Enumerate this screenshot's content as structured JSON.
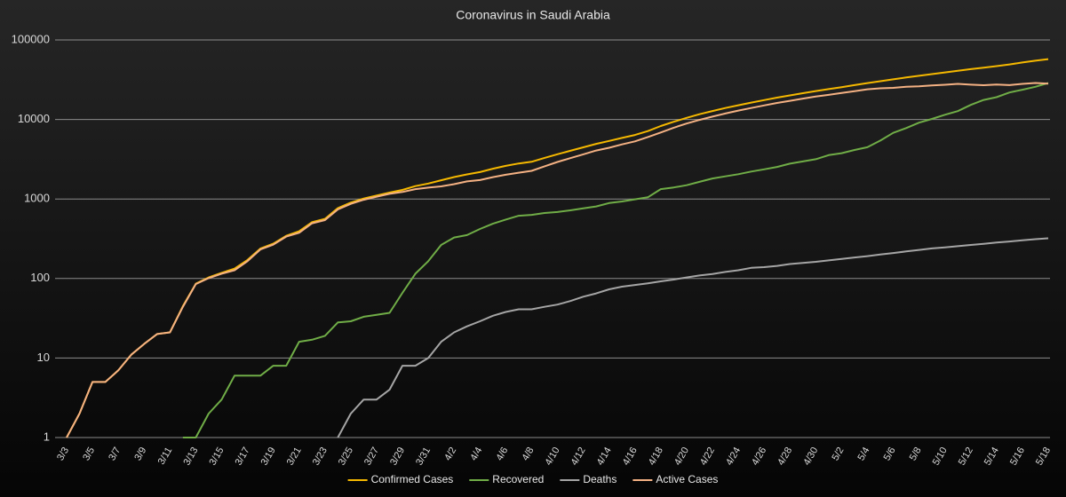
{
  "chart_data": {
    "type": "line",
    "title": "Coronavirus in Saudi Arabia",
    "categories": [
      "3/3",
      null,
      "3/5",
      null,
      "3/7",
      null,
      "3/9",
      null,
      "3/11",
      null,
      "3/13",
      null,
      "3/15",
      null,
      "3/17",
      null,
      "3/19",
      null,
      "3/21",
      null,
      "3/23",
      null,
      "3/25",
      null,
      "3/27",
      null,
      "3/29",
      null,
      "3/31",
      null,
      "4/2",
      null,
      "4/4",
      null,
      "4/6",
      null,
      "4/8",
      null,
      "4/10",
      null,
      "4/12",
      null,
      "4/14",
      null,
      "4/16",
      null,
      "4/18",
      null,
      "4/20",
      null,
      "4/22",
      null,
      "4/24",
      null,
      "4/26",
      null,
      "4/28",
      null,
      "4/30",
      null,
      "5/2",
      null,
      "5/4",
      null,
      "5/6",
      null,
      "5/8",
      null,
      "5/10",
      null,
      "5/12",
      null,
      "5/14",
      null,
      "5/16",
      null,
      "5/18"
    ],
    "series": [
      {
        "name": "Confirmed Cases",
        "color": "#f5b800",
        "values": [
          1,
          2,
          5,
          5,
          7,
          11,
          15,
          20,
          21,
          45,
          86,
          103,
          118,
          133,
          171,
          238,
          274,
          344,
          392,
          511,
          562,
          767,
          900,
          1012,
          1104,
          1203,
          1299,
          1453,
          1563,
          1720,
          1885,
          2039,
          2179,
          2402,
          2605,
          2795,
          2932,
          3287,
          3651,
          4033,
          4462,
          4934,
          5369,
          5862,
          6380,
          7142,
          8274,
          9362,
          10484,
          11631,
          12772,
          13930,
          15102,
          16299,
          17522,
          18811,
          20077,
          21402,
          22753,
          24097,
          25459,
          27011,
          28656,
          30251,
          31938,
          33731,
          35432,
          37136,
          39048,
          41014,
          42925,
          44830,
          46869,
          49176,
          52016,
          54752,
          57345
        ]
      },
      {
        "name": "Recovered",
        "color": "#70ad47",
        "values": [
          null,
          null,
          null,
          null,
          null,
          null,
          null,
          null,
          null,
          1,
          1,
          2,
          3,
          6,
          6,
          6,
          8,
          8,
          16,
          17,
          19,
          28,
          29,
          33,
          35,
          37,
          66,
          115,
          165,
          264,
          328,
          351,
          420,
          488,
          551,
          615,
          631,
          666,
          685,
          720,
          761,
          805,
          889,
          931,
          990,
          1049,
          1329,
          1398,
          1490,
          1640,
          1812,
          1925,
          2049,
          2215,
          2357,
          2531,
          2784,
          2963,
          3163,
          3555,
          3765,
          4134,
          4476,
          5431,
          6783,
          7798,
          9120,
          10144,
          11457,
          12737,
          15257,
          17622,
          19051,
          21869,
          23666,
          25722,
          28748
        ]
      },
      {
        "name": "Deaths",
        "color": "#a5a5a5",
        "values": [
          null,
          null,
          null,
          null,
          null,
          null,
          null,
          null,
          null,
          null,
          null,
          null,
          null,
          null,
          null,
          null,
          null,
          null,
          null,
          null,
          null,
          1,
          2,
          3,
          3,
          4,
          8,
          8,
          10,
          16,
          21,
          25,
          29,
          34,
          38,
          41,
          41,
          44,
          47,
          52,
          59,
          65,
          73,
          79,
          83,
          87,
          92,
          97,
          103,
          109,
          114,
          121,
          127,
          136,
          139,
          144,
          152,
          157,
          162,
          169,
          176,
          184,
          191,
          200,
          209,
          219,
          229,
          239,
          246,
          255,
          264,
          273,
          283,
          292,
          302,
          312,
          320
        ]
      },
      {
        "name": "Active Cases",
        "color": "#f4b183",
        "values": [
          1,
          2,
          5,
          5,
          7,
          11,
          15,
          20,
          21,
          44,
          85,
          101,
          115,
          127,
          165,
          232,
          266,
          336,
          376,
          494,
          543,
          738,
          869,
          976,
          1066,
          1162,
          1225,
          1330,
          1388,
          1440,
          1536,
          1663,
          1730,
          1880,
          2016,
          2139,
          2260,
          2577,
          2919,
          3261,
          3642,
          4064,
          4407,
          4852,
          5307,
          6006,
          6853,
          7867,
          8891,
          9882,
          10846,
          11884,
          12926,
          13948,
          15026,
          16136,
          17141,
          18282,
          19428,
          20373,
          21518,
          22693,
          23989,
          24620,
          24946,
          25714,
          26083,
          26753,
          27345,
          28022,
          27404,
          26935,
          27535,
          27015,
          28048,
          28718,
          28277
        ]
      }
    ],
    "ylim": [
      1,
      100000
    ],
    "yticks": [
      1,
      10,
      100,
      1000,
      10000,
      100000
    ],
    "yscale": "log",
    "grid": true,
    "legend": "bottom"
  }
}
